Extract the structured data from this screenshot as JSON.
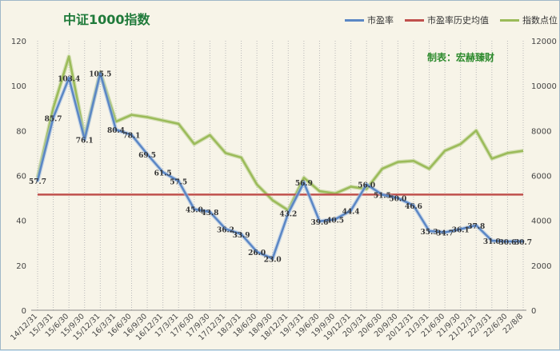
{
  "chart_data": {
    "type": "line",
    "title": "中证1000指数",
    "credit": "制表：宏赫臻财",
    "categories": [
      "14/12/31",
      "15/3/31",
      "15/6/30",
      "15/9/30",
      "15/12/31",
      "16/3/31",
      "16/6/30",
      "16/9/30",
      "16/12/31",
      "17/3/31",
      "17/6/30",
      "17/9/30",
      "17/12/31",
      "18/3/31",
      "18/6/30",
      "18/9/30",
      "18/12/31",
      "19/3/31",
      "19/6/30",
      "19/9/30",
      "19/12/31",
      "20/3/31",
      "20/6/30",
      "20/9/30",
      "20/12/31",
      "21/3/31",
      "21/6/30",
      "21/9/30",
      "21/12/31",
      "22/3/31",
      "22/6/30",
      "22/8/8"
    ],
    "series": [
      {
        "name": "市盈率",
        "axis": "left",
        "color": "#5b87c5",
        "values": [
          57.7,
          85.7,
          103.4,
          76.1,
          105.5,
          80.4,
          78.1,
          69.5,
          61.5,
          57.5,
          45.0,
          43.8,
          36.2,
          33.9,
          26.0,
          23.0,
          43.2,
          56.9,
          39.6,
          40.5,
          44.4,
          56.0,
          51.5,
          50.0,
          46.6,
          35.3,
          34.7,
          36.1,
          37.8,
          31.0,
          30.6,
          30.7
        ],
        "labels": [
          "57.7",
          "85.7",
          "103.4",
          "76.1",
          "105.5",
          "80.4",
          "78.1",
          "69.5",
          "61.5",
          "57.5",
          "45.0",
          "43.8",
          "36.2",
          "33.9",
          "26.0",
          "23.0",
          "43.2",
          "56.9",
          "39.6",
          "40.5",
          "44.4",
          "56.0",
          "51.5",
          "50.0",
          "46.6",
          "35.3",
          "34.7",
          "36.1",
          "37.8",
          "31.0",
          "30.6",
          "30.7"
        ]
      },
      {
        "name": "市盈率历史均值",
        "axis": "left",
        "color": "#c0504d",
        "constant": 51.5
      },
      {
        "name": "指数点位",
        "axis": "right",
        "color": "#9bbb59",
        "values": [
          5900,
          9000,
          11300,
          7700,
          10600,
          8400,
          8700,
          8600,
          8450,
          8300,
          7400,
          7800,
          7000,
          6800,
          5600,
          4900,
          4450,
          5900,
          5300,
          5200,
          5500,
          5400,
          6300,
          6600,
          6650,
          6300,
          7100,
          7400,
          8000,
          6750,
          7000,
          7100
        ]
      }
    ],
    "y_left": {
      "min": 0,
      "max": 120,
      "ticks": [
        "0",
        "20",
        "40",
        "60",
        "80",
        "100",
        "120"
      ]
    },
    "y_right": {
      "min": 0,
      "max": 12000,
      "ticks": [
        "0",
        "2000",
        "4000",
        "6000",
        "8000",
        "10000",
        "12000"
      ]
    },
    "grid": "vertical-dotted",
    "legend_position": "top-right"
  }
}
